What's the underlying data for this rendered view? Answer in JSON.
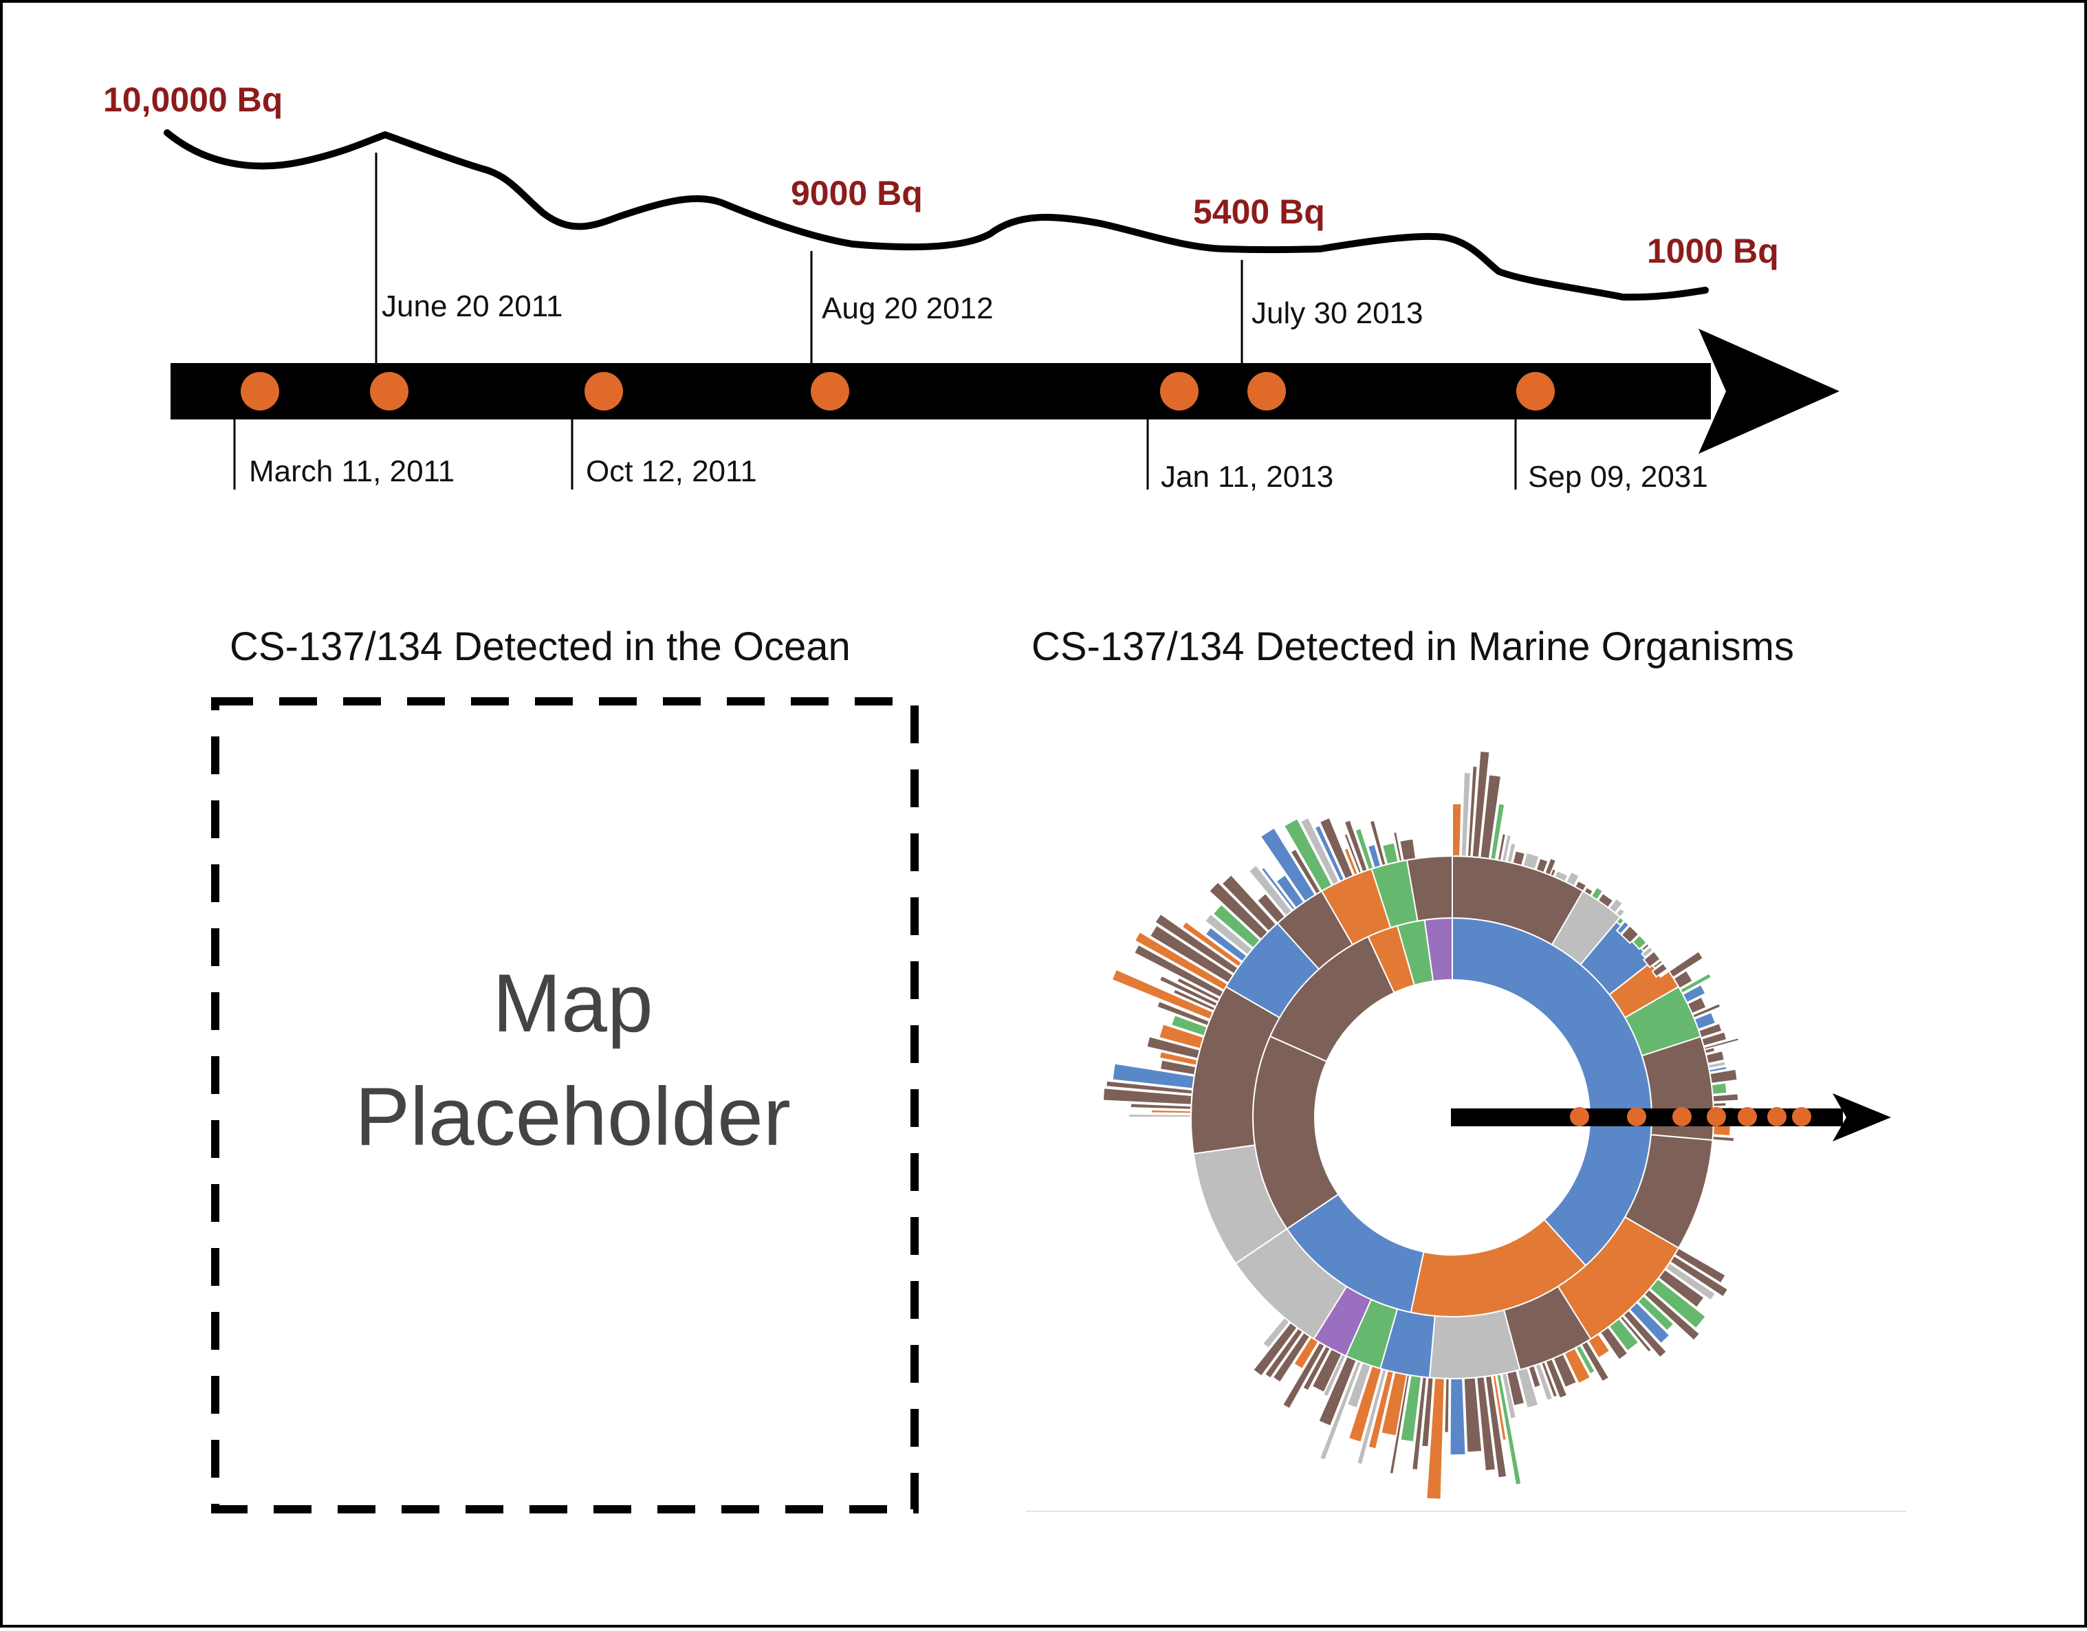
{
  "timeline": {
    "top_dates": [
      "June 20 2011",
      "Aug 20 2012",
      "July 30 2013"
    ],
    "bottom_dates": [
      "March 11, 2011",
      "Oct 12, 2011",
      "Jan 11, 2013",
      "Sep 09, 2031"
    ],
    "levels": [
      "10,0000 Bq",
      "9000 Bq",
      "5400 Bq",
      "1000 Bq"
    ],
    "colors": {
      "arrow": "#000000",
      "dot": "#e06a2a",
      "level_text": "#8c1c1c",
      "curve": "#000000"
    }
  },
  "left_panel": {
    "title": "CS-137/134  Detected in the Ocean",
    "placeholder_line1": "Map",
    "placeholder_line2": "Placeholder"
  },
  "right_panel": {
    "title": "CS-137/134  Detected in Marine Organisms",
    "sunburst_colors": {
      "brown": "#7d6058",
      "blue": "#5a87c8",
      "orange": "#e27a35",
      "gray": "#bebebe",
      "green": "#66b86e",
      "purple": "#9a6fc0",
      "red": "#cf4b3f"
    }
  }
}
